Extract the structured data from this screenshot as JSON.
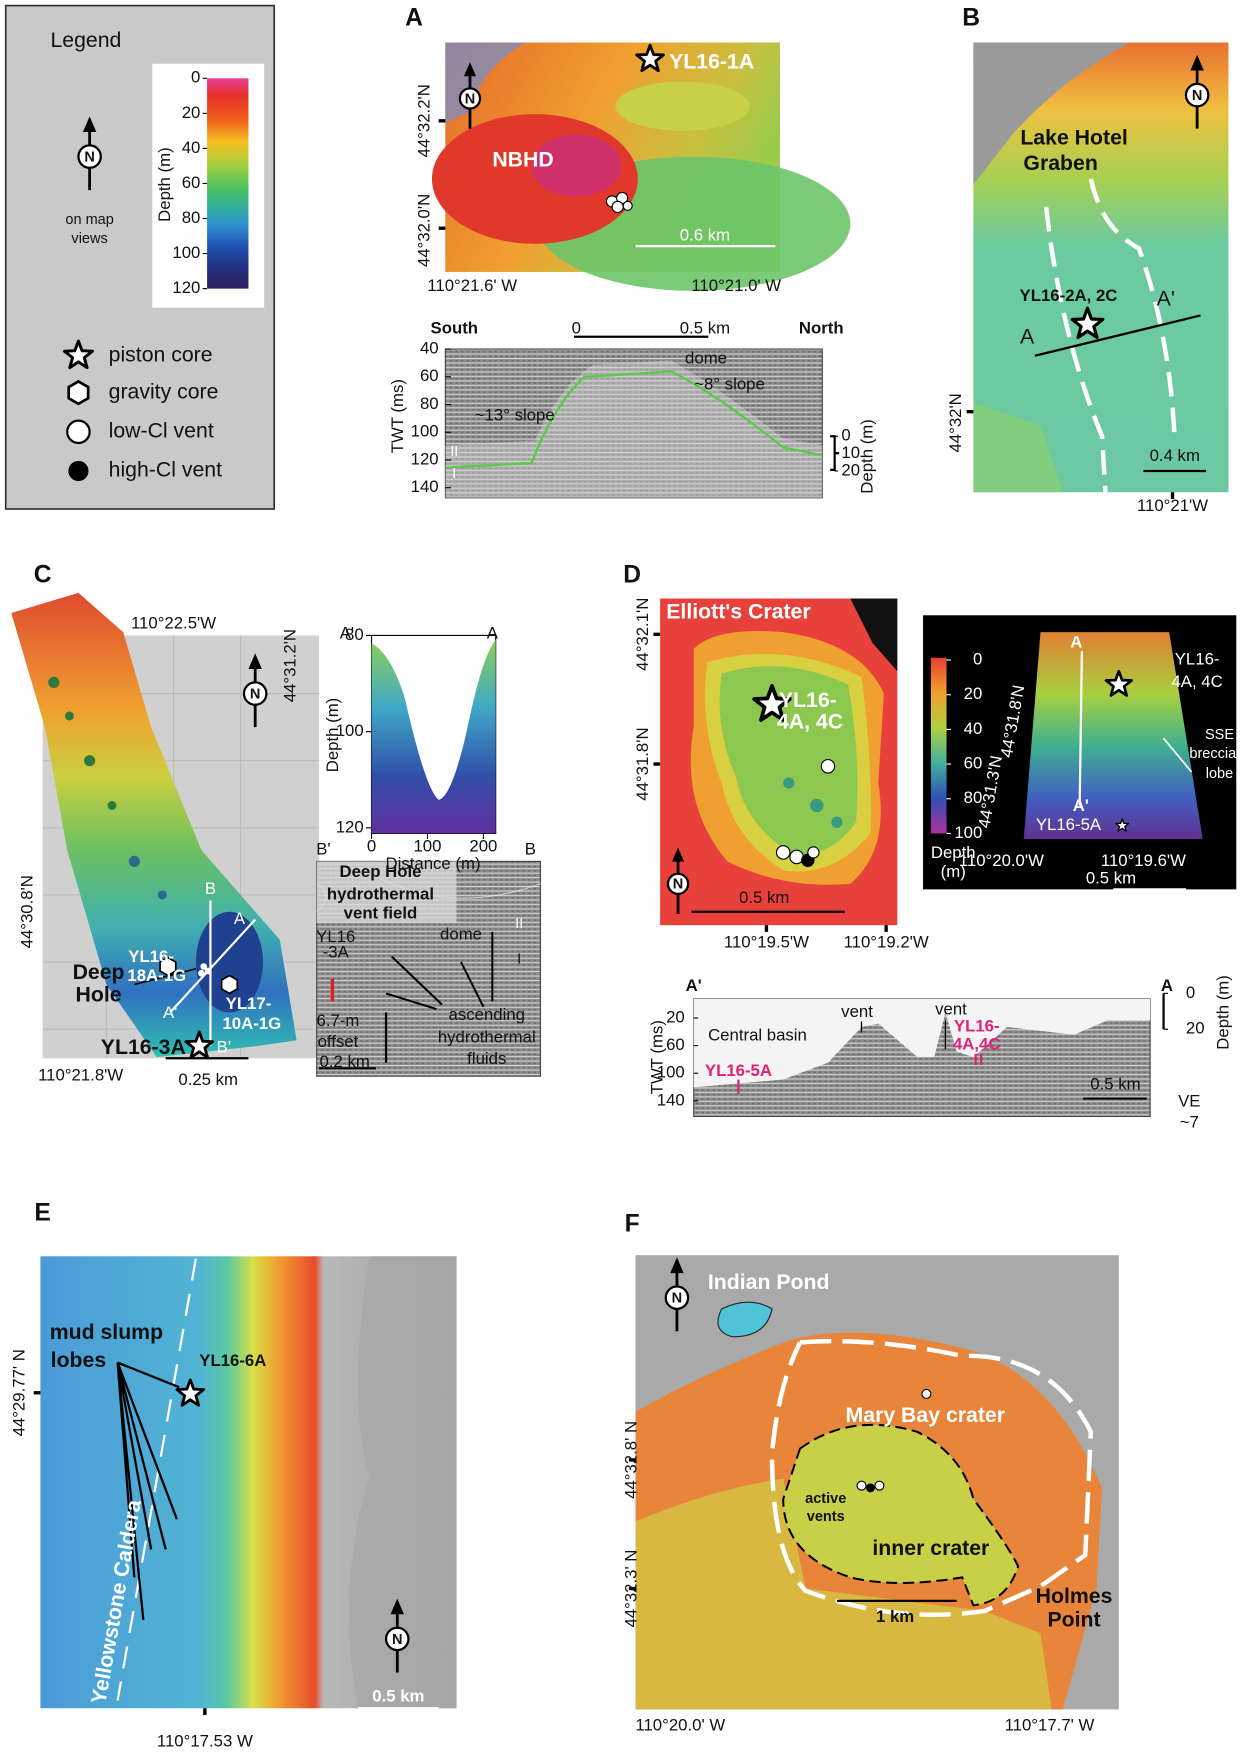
{
  "legend": {
    "title": "Legend",
    "north_symbol": "N",
    "north_note": [
      "on map",
      "views"
    ],
    "depth_label": "Depth (m)",
    "depth_ticks": [
      0,
      20,
      40,
      60,
      80,
      100,
      120
    ],
    "items": [
      "piston core",
      "gravity core",
      "low-Cl vent",
      "high-Cl vent"
    ]
  },
  "panel_a": {
    "letter": "A",
    "texts": [
      "YL16-1A",
      "NBHD",
      "44°32.2'N",
      "44°32.0'N",
      "0.6 km",
      "110°21.6' W",
      "110°21.0' W",
      "South",
      "North",
      "0",
      "0.5 km",
      "TWT (ms)",
      "~13° slope",
      "dome",
      "~8° slope",
      "II",
      "I",
      "Depth (m)"
    ],
    "twt_ticks": [
      40,
      60,
      80,
      100,
      120,
      140
    ],
    "depth_ticks": [
      0,
      10,
      20
    ]
  },
  "panel_b": {
    "letter": "B",
    "texts": [
      "Lake Hotel",
      "Graben",
      "YL16-2A, 2C",
      "A'",
      "A",
      "44°32'N",
      "0.4 km",
      "110°21'W"
    ]
  },
  "panel_c": {
    "letter": "C",
    "texts": [
      "110°22.5'W",
      "44°31.2'N",
      "44°30.8'N",
      "B",
      "A",
      "YL16-",
      "18A-1G",
      "Deep",
      "Hole",
      "A'",
      "YL17-",
      "10A-1G",
      "B'",
      "YL16-3A",
      "110°21.8'W",
      "0.25 km"
    ],
    "profile_texts": [
      "A'",
      "A",
      "Depth (m)",
      "Distance (m)"
    ],
    "profile_yticks": [
      80,
      100,
      120
    ],
    "profile_xticks": [
      0,
      100,
      200
    ],
    "seismic_texts": [
      "B'",
      "B",
      "Deep Hole",
      "hydrothermal",
      "vent field",
      "YL16",
      "-3A",
      "dome",
      "II",
      "I",
      "ascending",
      "hydrothermal",
      "fluids",
      "6.7-m",
      "offset",
      "0.2 km"
    ]
  },
  "panel_d": {
    "letter": "D",
    "texts": [
      "Elliott's Crater",
      "44°32.1'N",
      "44°31.8'N",
      "YL16-",
      "4A, 4C",
      "0.5 km",
      "110°19.5'W",
      "110°19.2'W"
    ],
    "inset_depth_ticks": [
      0,
      20,
      40,
      60,
      80,
      100
    ],
    "inset_texts": [
      "Depth",
      "(m)",
      "A",
      "YL16-",
      "4A, 4C",
      "SSE",
      "breccia",
      "lobe",
      "A'",
      "44°31.8'N",
      "44°31.3'N",
      "YL16-5A",
      "110°20.0'W",
      "110°19.6'W",
      "0.5 km"
    ],
    "seismic_texts": [
      "A'",
      "A",
      "TWT (ms)",
      "Central basin",
      "vent",
      "vent",
      "YL16-",
      "4A,4C",
      "YL16-5A",
      "0.5 km",
      "VE",
      "~7",
      "Depth (m)"
    ],
    "twt_ticks": [
      20,
      60,
      100,
      140
    ],
    "depth_ticks": [
      0,
      20
    ]
  },
  "panel_e": {
    "letter": "E",
    "texts": [
      "mud slump",
      "lobes",
      "YL16-6A",
      "44°29.77' N",
      "Yellowstone Caldera",
      "0.5 km",
      "110°17.53 W"
    ]
  },
  "panel_f": {
    "letter": "F",
    "texts": [
      "Indian Pond",
      "Mary Bay crater",
      "active",
      "vents",
      "inner crater",
      "Holmes",
      "Point",
      "44°32.8' N",
      "44°32.3' N",
      "1 km",
      "110°20.0' W",
      "110°17.7' W"
    ]
  }
}
